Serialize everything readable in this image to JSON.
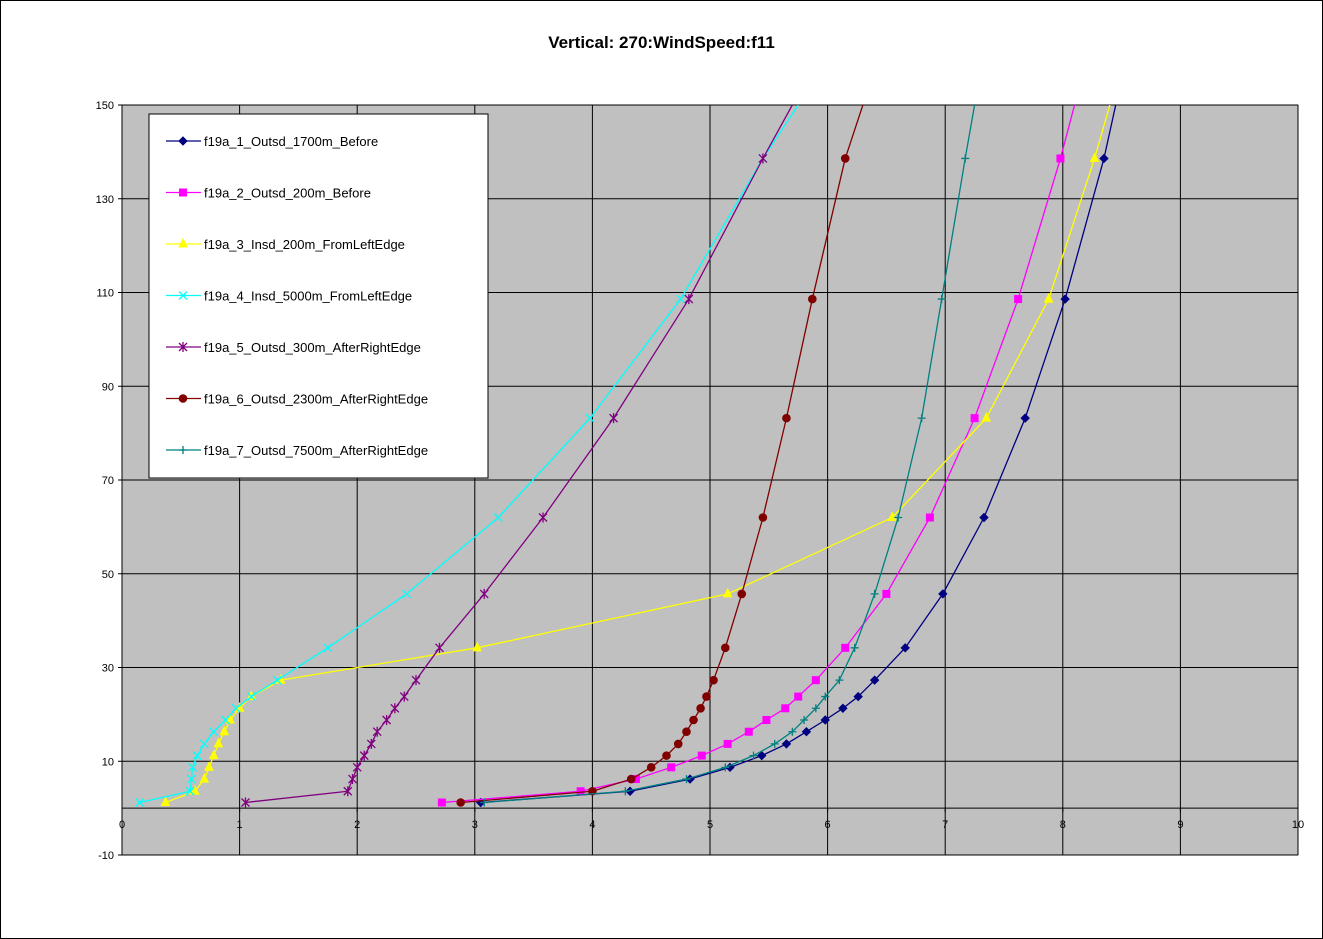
{
  "chart_data": {
    "type": "line",
    "title": "Vertical: 270:WindSpeed:f11",
    "xlabel": "",
    "ylabel": "",
    "xlim": [
      0,
      10
    ],
    "ylim": [
      -10,
      150
    ],
    "x_ticks": [
      "0",
      "1",
      "2",
      "3",
      "4",
      "5",
      "6",
      "7",
      "8",
      "9",
      "10"
    ],
    "y_ticks": [
      "-10",
      "10",
      "30",
      "50",
      "70",
      "90",
      "110",
      "130",
      "150"
    ],
    "grid": true,
    "plot_background": "#c0c0c0",
    "legend_position": "top-left",
    "series": [
      {
        "name": "f19a_1_Outsd_1700m_Before",
        "color": "#000080",
        "marker": "diamond",
        "points": [
          [
            3.05,
            1.2
          ],
          [
            4.32,
            3.6
          ],
          [
            4.83,
            6.2
          ],
          [
            5.17,
            8.7
          ],
          [
            5.44,
            11.2
          ],
          [
            5.65,
            13.7
          ],
          [
            5.82,
            16.3
          ],
          [
            5.98,
            18.8
          ],
          [
            6.13,
            21.3
          ],
          [
            6.26,
            23.8
          ],
          [
            6.4,
            27.3
          ],
          [
            6.66,
            34.2
          ],
          [
            6.98,
            45.7
          ],
          [
            7.33,
            62.0
          ],
          [
            7.68,
            83.2
          ],
          [
            8.02,
            108.6
          ],
          [
            8.35,
            138.6
          ],
          [
            8.45,
            150
          ]
        ]
      },
      {
        "name": "f19a_2_Outsd_200m_Before",
        "color": "#ff00ff",
        "marker": "square",
        "points": [
          [
            2.72,
            1.2
          ],
          [
            3.9,
            3.6
          ],
          [
            4.37,
            6.2
          ],
          [
            4.67,
            8.7
          ],
          [
            4.93,
            11.2
          ],
          [
            5.15,
            13.7
          ],
          [
            5.33,
            16.3
          ],
          [
            5.48,
            18.8
          ],
          [
            5.64,
            21.3
          ],
          [
            5.75,
            23.8
          ],
          [
            5.9,
            27.3
          ],
          [
            6.15,
            34.2
          ],
          [
            6.5,
            45.7
          ],
          [
            6.87,
            62.0
          ],
          [
            7.25,
            83.2
          ],
          [
            7.62,
            108.6
          ],
          [
            7.98,
            138.6
          ],
          [
            8.1,
            150
          ]
        ]
      },
      {
        "name": "f19a_3_Insd_200m_FromLeftEdge",
        "color": "#ffff00",
        "marker": "triangle",
        "points": [
          [
            0.37,
            1.2
          ],
          [
            0.62,
            3.6
          ],
          [
            0.7,
            6.2
          ],
          [
            0.74,
            8.7
          ],
          [
            0.78,
            11.2
          ],
          [
            0.82,
            13.7
          ],
          [
            0.87,
            16.3
          ],
          [
            0.92,
            18.8
          ],
          [
            1.0,
            21.3
          ],
          [
            1.1,
            23.8
          ],
          [
            1.35,
            27.3
          ],
          [
            3.02,
            34.2
          ],
          [
            5.15,
            45.7
          ],
          [
            6.55,
            62.0
          ],
          [
            7.35,
            83.2
          ],
          [
            7.88,
            108.6
          ],
          [
            8.27,
            138.6
          ],
          [
            8.4,
            150
          ]
        ]
      },
      {
        "name": "f19a_4_Insd_5000m_FromLeftEdge",
        "color": "#00ffff",
        "marker": "x",
        "points": [
          [
            0.15,
            1.2
          ],
          [
            0.58,
            3.6
          ],
          [
            0.59,
            6.2
          ],
          [
            0.6,
            8.7
          ],
          [
            0.64,
            11.2
          ],
          [
            0.7,
            13.7
          ],
          [
            0.78,
            16.3
          ],
          [
            0.88,
            18.8
          ],
          [
            0.97,
            21.3
          ],
          [
            1.1,
            23.8
          ],
          [
            1.32,
            27.3
          ],
          [
            1.75,
            34.2
          ],
          [
            2.42,
            45.7
          ],
          [
            3.2,
            62.0
          ],
          [
            3.98,
            83.2
          ],
          [
            4.75,
            108.6
          ],
          [
            5.45,
            138.6
          ],
          [
            5.75,
            150
          ]
        ]
      },
      {
        "name": "f19a_5_Outsd_300m_AfterRightEdge",
        "color": "#800080",
        "marker": "star",
        "points": [
          [
            1.05,
            1.2
          ],
          [
            1.92,
            3.6
          ],
          [
            1.96,
            6.2
          ],
          [
            2.0,
            8.7
          ],
          [
            2.06,
            11.2
          ],
          [
            2.12,
            13.7
          ],
          [
            2.17,
            16.3
          ],
          [
            2.25,
            18.8
          ],
          [
            2.32,
            21.3
          ],
          [
            2.4,
            23.8
          ],
          [
            2.5,
            27.3
          ],
          [
            2.7,
            34.2
          ],
          [
            3.08,
            45.7
          ],
          [
            3.58,
            62.0
          ],
          [
            4.18,
            83.2
          ],
          [
            4.82,
            108.6
          ],
          [
            5.45,
            138.6
          ],
          [
            5.7,
            150
          ]
        ]
      },
      {
        "name": "f19a_6_Outsd_2300m_AfterRightEdge",
        "color": "#800000",
        "marker": "circle",
        "points": [
          [
            2.88,
            1.2
          ],
          [
            4.0,
            3.6
          ],
          [
            4.33,
            6.2
          ],
          [
            4.5,
            8.7
          ],
          [
            4.63,
            11.2
          ],
          [
            4.73,
            13.7
          ],
          [
            4.8,
            16.3
          ],
          [
            4.86,
            18.8
          ],
          [
            4.92,
            21.3
          ],
          [
            4.97,
            23.8
          ],
          [
            5.03,
            27.3
          ],
          [
            5.13,
            34.2
          ],
          [
            5.27,
            45.7
          ],
          [
            5.45,
            62.0
          ],
          [
            5.65,
            83.2
          ],
          [
            5.87,
            108.6
          ],
          [
            6.15,
            138.6
          ],
          [
            6.3,
            150
          ]
        ]
      },
      {
        "name": "f19a_7_Outsd_7500m_AfterRightEdge",
        "color": "#008080",
        "marker": "plus",
        "points": [
          [
            3.08,
            1.2
          ],
          [
            4.28,
            3.6
          ],
          [
            4.8,
            6.2
          ],
          [
            5.13,
            8.7
          ],
          [
            5.37,
            11.2
          ],
          [
            5.55,
            13.7
          ],
          [
            5.7,
            16.3
          ],
          [
            5.8,
            18.8
          ],
          [
            5.9,
            21.3
          ],
          [
            5.98,
            23.8
          ],
          [
            6.1,
            27.3
          ],
          [
            6.23,
            34.2
          ],
          [
            6.4,
            45.7
          ],
          [
            6.6,
            62.0
          ],
          [
            6.8,
            83.2
          ],
          [
            6.97,
            108.6
          ],
          [
            7.17,
            138.6
          ],
          [
            7.25,
            150
          ]
        ]
      }
    ]
  }
}
